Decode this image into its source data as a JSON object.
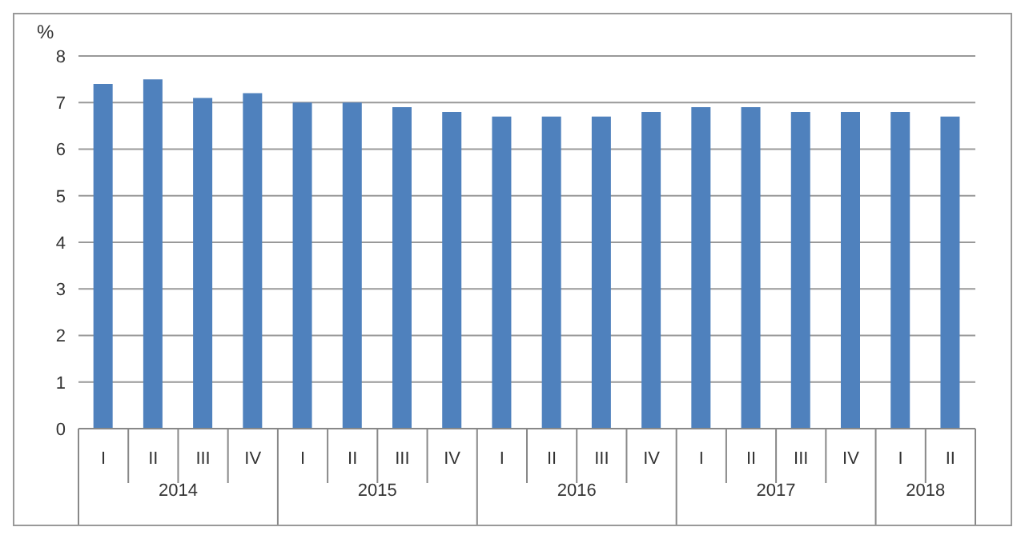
{
  "chart_data": {
    "type": "bar",
    "ylabel": "%",
    "categories": [
      "I",
      "II",
      "III",
      "IV",
      "I",
      "II",
      "III",
      "IV",
      "I",
      "II",
      "III",
      "IV",
      "I",
      "II",
      "III",
      "IV",
      "I",
      "II"
    ],
    "values": [
      7.4,
      7.5,
      7.1,
      7.2,
      7.0,
      7.0,
      6.9,
      6.8,
      6.7,
      6.7,
      6.7,
      6.8,
      6.9,
      6.9,
      6.8,
      6.8,
      6.8,
      6.7
    ],
    "color": "#4f81bd",
    "ylim": [
      0,
      8
    ],
    "yticks": [
      0,
      1,
      2,
      3,
      4,
      5,
      6,
      7,
      8
    ],
    "grid": "y",
    "annotations": [
      "2014",
      "2015",
      "2016",
      "2017",
      "2018"
    ]
  }
}
